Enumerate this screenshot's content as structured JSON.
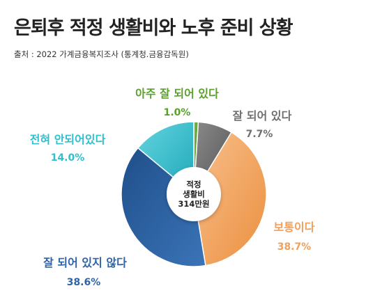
{
  "title": "은퇴후 적정 생활비와 노후 준비 상황",
  "source": "출처 : 2022 가계금융복지조사 (통계청.금융감독원)",
  "center_label": [
    "적정",
    "생활비",
    "314만원"
  ],
  "chart_data": {
    "type": "pie",
    "variant": "donut",
    "title": "은퇴후 적정 생활비와 노후 준비 상황",
    "legend": "none",
    "start_angle_deg": 0,
    "direction": "clockwise",
    "slices": [
      {
        "label": "아주 잘 되어 있다",
        "value": 1.0,
        "value_label": "1.0%",
        "color": "#5aa02c"
      },
      {
        "label": "잘 되어 있다",
        "value": 7.7,
        "value_label": "7.7%",
        "color": "#6f6f6f"
      },
      {
        "label": "보통이다",
        "value": 38.7,
        "value_label": "38.7%",
        "color": "#f0a05c"
      },
      {
        "label": "잘 되어 있지 않다",
        "value": 38.6,
        "value_label": "38.6%",
        "color": "#2e63a6"
      },
      {
        "label": "전혀 안되어있다",
        "value": 14.0,
        "value_label": "14.0%",
        "color": "#2fc0d0"
      }
    ]
  }
}
